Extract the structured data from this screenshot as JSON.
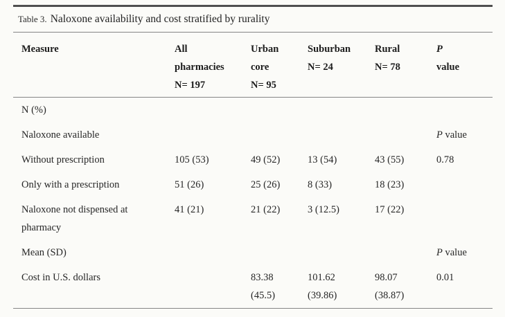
{
  "caption": {
    "label": "Table 3.",
    "title": "Naloxone availability and cost stratified by rurality"
  },
  "header": {
    "measure": "Measure",
    "all_pharmacies": "All\npharmacies\nN= 197",
    "urban_core": "Urban\ncore\nN= 95",
    "suburban": "Suburban\nN= 24",
    "rural": "Rural\nN= 78",
    "p": "P",
    "p_value_word": "\nvalue"
  },
  "labels": {
    "p": "P",
    "value_word": " value"
  },
  "colors": {
    "background": "#fbfbf8",
    "text": "#262626",
    "rule_dark": "#4f4f4f",
    "rule_light": "#858585"
  },
  "rows": [
    {
      "measure": "N (%)",
      "all": "",
      "urban": "",
      "suburban": "",
      "rural": "",
      "p": ""
    },
    {
      "measure": "Naloxone available",
      "all": "",
      "urban": "",
      "suburban": "",
      "rural": ""
    },
    {
      "measure": "Without prescription",
      "all": "105 (53)",
      "urban": "49 (52)",
      "suburban": "13 (54)",
      "rural": "43 (55)",
      "p": "0.78"
    },
    {
      "measure": "Only with a prescription",
      "all": "51 (26)",
      "urban": "25 (26)",
      "suburban": "8 (33)",
      "rural": "18 (23)",
      "p": ""
    },
    {
      "measure": "Naloxone not dispensed at\npharmacy",
      "all": "41 (21)",
      "urban": "21 (22)",
      "suburban": "3 (12.5)",
      "rural": "17 (22)",
      "p": ""
    },
    {
      "measure": "Mean (SD)",
      "all": "",
      "urban": "",
      "suburban": "",
      "rural": ""
    },
    {
      "measure": "Cost in U.S. dollars",
      "all": "",
      "urban": "83.38\n(45.5)",
      "suburban": "101.62\n(39.86)",
      "rural": "98.07\n(38.87)",
      "p": "0.01"
    }
  ]
}
